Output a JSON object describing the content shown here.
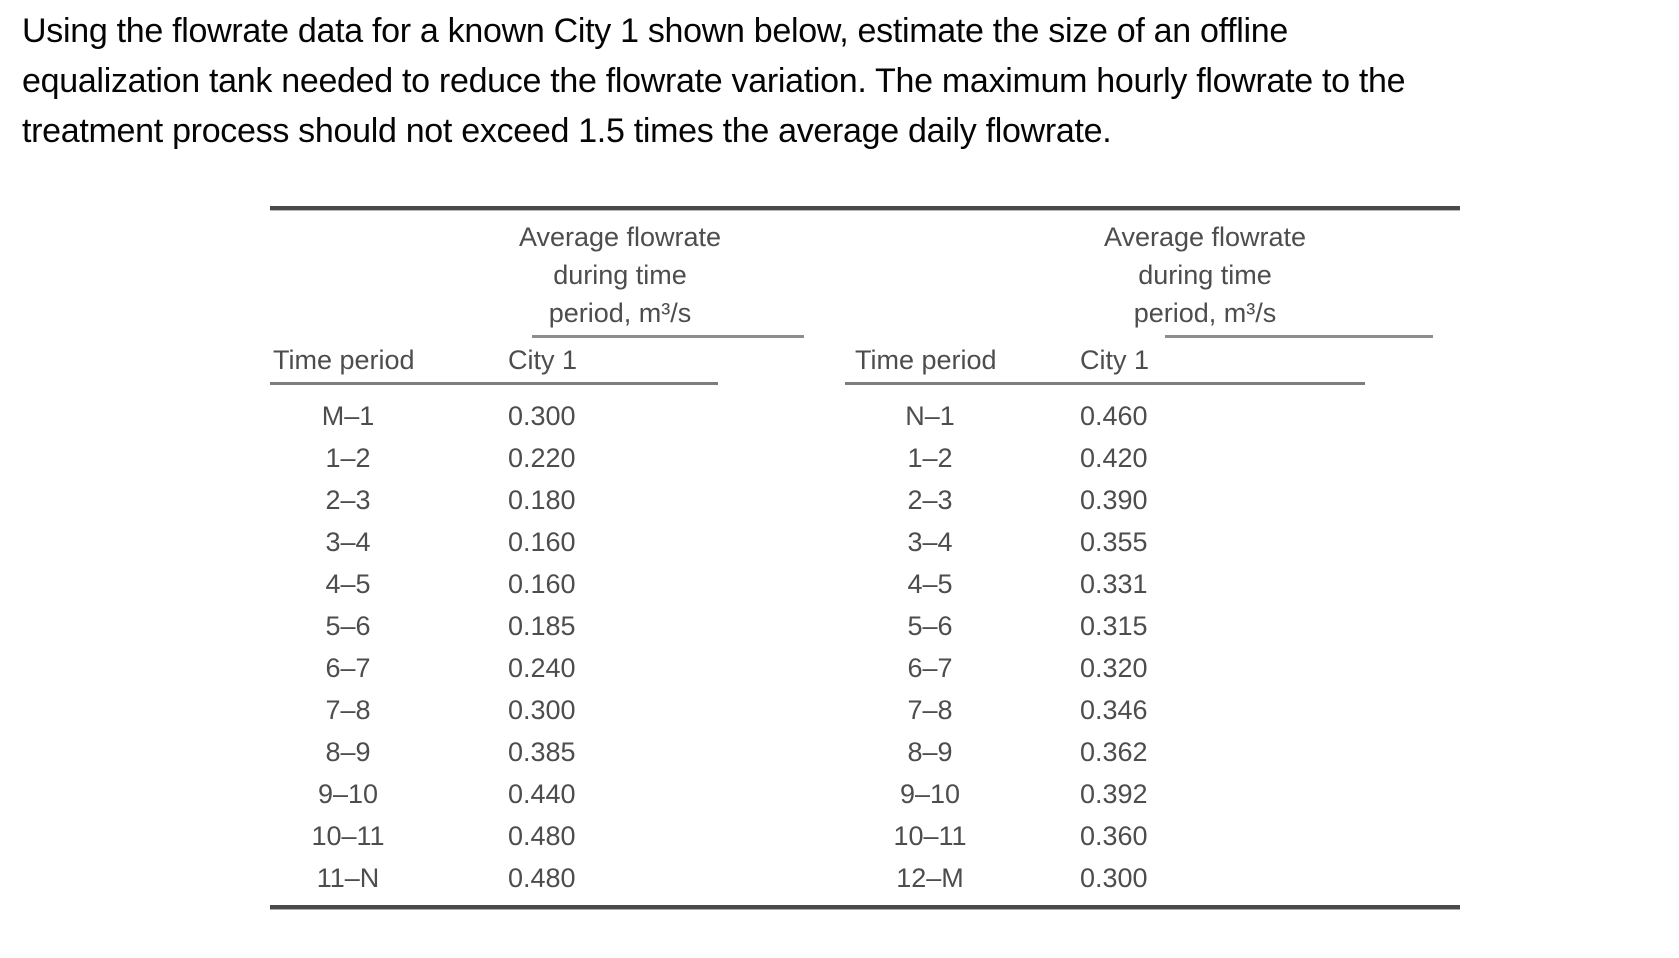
{
  "problem": {
    "lines": [
      "Using the flowrate data for a known City 1 shown below, estimate the size of an offline",
      "equalization tank needed to reduce the flowrate variation. The maximum hourly flowrate to the",
      "treatment process should not exceed 1.5 times the average daily flowrate."
    ]
  },
  "table": {
    "spanner_lines": [
      "Average flowrate",
      "during time",
      "period, m³/s"
    ],
    "columns": {
      "time": "Time period",
      "city": "City 1"
    },
    "left": {
      "rows": [
        {
          "period": "M–1",
          "value": "0.300"
        },
        {
          "period": "1–2",
          "value": "0.220"
        },
        {
          "period": "2–3",
          "value": "0.180"
        },
        {
          "period": "3–4",
          "value": "0.160"
        },
        {
          "period": "4–5",
          "value": "0.160"
        },
        {
          "period": "5–6",
          "value": "0.185"
        },
        {
          "period": "6–7",
          "value": "0.240"
        },
        {
          "period": "7–8",
          "value": "0.300"
        },
        {
          "period": "8–9",
          "value": "0.385"
        },
        {
          "period": "9–10",
          "value": "0.440"
        },
        {
          "period": "10–11",
          "value": "0.480"
        },
        {
          "period": "11–N",
          "value": "0.480"
        }
      ]
    },
    "right": {
      "rows": [
        {
          "period": "N–1",
          "value": "0.460"
        },
        {
          "period": "1–2",
          "value": "0.420"
        },
        {
          "period": "2–3",
          "value": "0.390"
        },
        {
          "period": "3–4",
          "value": "0.355"
        },
        {
          "period": "4–5",
          "value": "0.331"
        },
        {
          "period": "5–6",
          "value": "0.315"
        },
        {
          "period": "6–7",
          "value": "0.320"
        },
        {
          "period": "7–8",
          "value": "0.346"
        },
        {
          "period": "8–9",
          "value": "0.362"
        },
        {
          "period": "9–10",
          "value": "0.392"
        },
        {
          "period": "10–11",
          "value": "0.360"
        },
        {
          "period": "12–M",
          "value": "0.300"
        }
      ]
    }
  },
  "colors": {
    "page_background": "#ffffff",
    "problem_text": "#050505",
    "table_text": "#4d4d4d",
    "rule_dark": "#4a4a4a",
    "rule_light": "#8d8d8d"
  }
}
